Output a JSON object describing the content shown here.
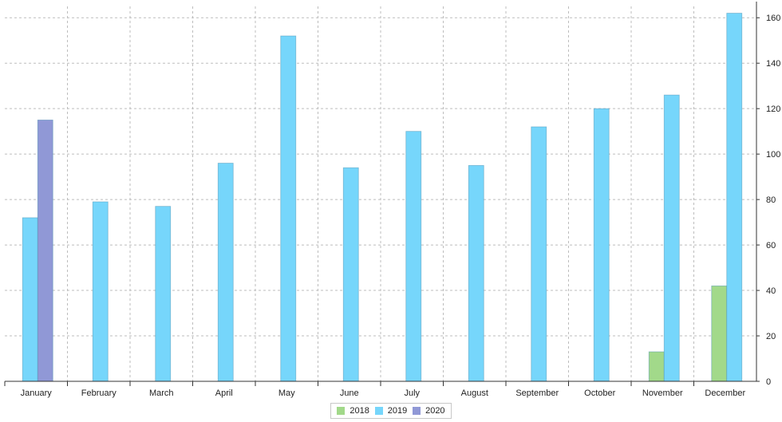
{
  "chart_data": {
    "type": "bar",
    "categories": [
      "January",
      "February",
      "March",
      "April",
      "May",
      "June",
      "July",
      "August",
      "September",
      "October",
      "November",
      "December"
    ],
    "series": [
      {
        "name": "2018",
        "color": "#a2d98a",
        "values": [
          0,
          0,
          0,
          0,
          0,
          0,
          0,
          0,
          0,
          0,
          13,
          42
        ]
      },
      {
        "name": "2019",
        "color": "#76d6fb",
        "values": [
          72,
          79,
          77,
          96,
          152,
          94,
          110,
          95,
          112,
          120,
          126,
          162
        ]
      },
      {
        "name": "2020",
        "color": "#9098d6",
        "values": [
          115,
          0,
          0,
          0,
          0,
          0,
          0,
          0,
          0,
          0,
          0,
          0
        ]
      }
    ],
    "yticks": [
      "0",
      "20",
      "40",
      "60",
      "80",
      "100",
      "120",
      "140",
      "160"
    ],
    "ylim": [
      0,
      165
    ],
    "y_axis_side": "right",
    "grid": true,
    "legend_position": "bottom-center"
  }
}
